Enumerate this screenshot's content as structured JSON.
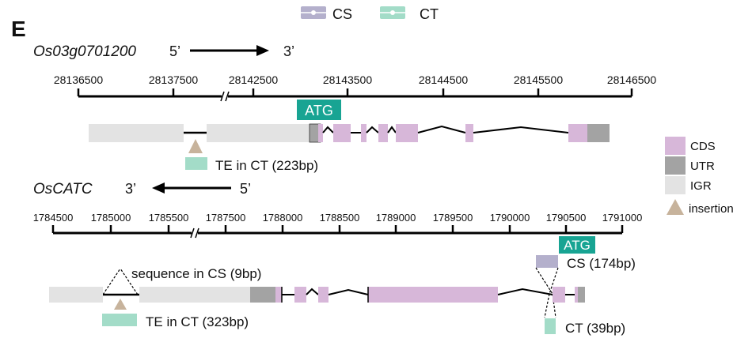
{
  "panel_label": "E",
  "legend_top": {
    "items": [
      {
        "label": "CS",
        "color": "#b4b0cc"
      },
      {
        "label": "CT",
        "color": "#a3dcc8"
      }
    ]
  },
  "gene1": {
    "name": "Os03g0701200",
    "left_end": "5’",
    "right_end": "3’",
    "ticks": [
      "28136500",
      "28137500",
      "28142500",
      "28143500",
      "28144500",
      "28145500",
      "28146500"
    ],
    "atg_label": "ATG",
    "te_label": "TE in CT (223bp)"
  },
  "gene2": {
    "name": "OsCATC",
    "left_end": "3’",
    "right_end": "5’",
    "ticks": [
      "1784500",
      "1785000",
      "1785500",
      "1787500",
      "1788000",
      "1788500",
      "1789000",
      "1789500",
      "1790000",
      "1790500",
      "1791000"
    ],
    "atg_label": "ATG",
    "cs_seq_label": "sequence in CS (9bp)",
    "te_label": "TE in CT (323bp)",
    "cs_label": "CS (174bp)",
    "ct_label": "CT (39bp)"
  },
  "legend_right": {
    "items": [
      {
        "label": "CDS",
        "color": "#d7b7d9"
      },
      {
        "label": "UTR",
        "color": "#a3a3a3"
      },
      {
        "label": "IGR",
        "color": "#e3e3e3"
      },
      {
        "label": "insertion",
        "color": "#c7b39c"
      }
    ]
  },
  "colors": {
    "atg": "#18a493",
    "te": "#a3dcc8",
    "cs_block": "#b4b0cc",
    "insertion": "#c7b39c"
  }
}
